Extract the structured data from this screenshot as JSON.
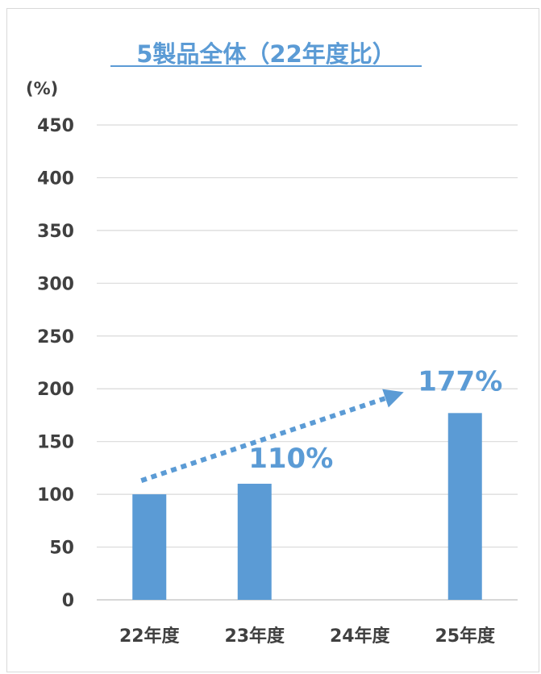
{
  "chart_data": {
    "type": "bar",
    "title": "5製品全体（22年度比）",
    "ylabel": "(%)",
    "xlabel": "",
    "ylim": [
      0,
      450
    ],
    "yticks": [
      0,
      50,
      100,
      150,
      200,
      250,
      300,
      350,
      400,
      450
    ],
    "categories": [
      "22年度",
      "23年度",
      "24年度",
      "25年度"
    ],
    "values": [
      100,
      110,
      null,
      177
    ],
    "annotations": [
      {
        "category": "23年度",
        "text": "110%"
      },
      {
        "category": "25年度",
        "text": "177%"
      }
    ],
    "trend_arrow": {
      "from": "22年度",
      "to": "25年度",
      "style": "dotted"
    },
    "grid": true,
    "legend": "none",
    "colors": {
      "bar": "#5b9bd5",
      "grid": "#d9d9d9",
      "text": "#404040",
      "accent": "#5b9bd5"
    }
  }
}
